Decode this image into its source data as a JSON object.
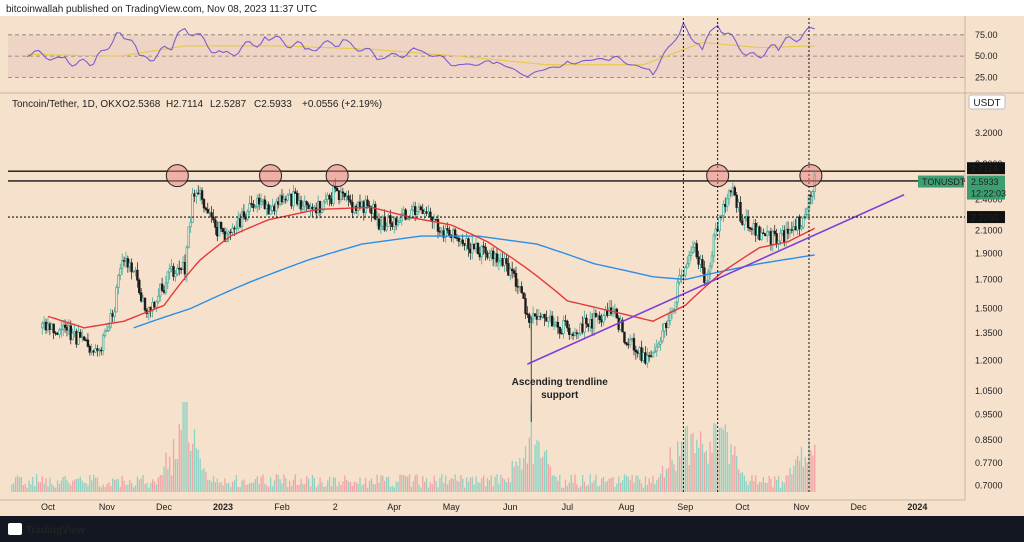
{
  "header": {
    "publisher": "bitcoinwallah published on TradingView.com, Nov 08, 2023 11:37 UTC"
  },
  "footer": {
    "brand": "TradingView"
  },
  "symbol_bar": {
    "pair": "Toncoin/Tether, 1D, OKX",
    "open": "O2.5368",
    "high": "H2.7114",
    "low": "L2.5287",
    "close": "C2.5933",
    "change": "+0.0556 (+2.19%)"
  },
  "currency_badge": "USDT",
  "annotation": {
    "line1": "Ascending trendline",
    "line2": "support"
  },
  "price_tags": [
    {
      "label": "2.7114",
      "price": 2.7114,
      "style": "dark"
    },
    {
      "label": "2.6000",
      "price": 2.6,
      "style": "dark"
    },
    {
      "label": "2.2250",
      "price": 2.225,
      "style": "dark"
    }
  ],
  "ticker_tag": {
    "label": "TONUSDT",
    "price": 2.5933,
    "value": "2.5933",
    "countdown": "12:22:03"
  },
  "colors": {
    "background": "#f6e2cc",
    "up": "#26a69a",
    "down": "#1a1a1a",
    "ema50": "#e5383b",
    "ema200": "#2b8ee6",
    "trendline": "#7e3fd8",
    "rsi": "#7b5ccf",
    "rsi_ma": "#e8c84a",
    "highlight_circle": "#e88080",
    "tag_dark": "#111111",
    "tag_green": "#3d9e72",
    "volume_up": "#8fd1c2",
    "volume_down": "#f1a3a3"
  },
  "chart_data": [
    {
      "type": "candlestick",
      "title": "Toncoin/Tether, 1D, OKX",
      "y_axis": {
        "ticks": [
          3.2,
          2.8,
          2.4,
          2.1,
          1.9,
          1.7,
          1.5,
          1.35,
          1.2,
          1.05,
          0.95,
          0.85,
          0.77,
          0.7
        ],
        "range": [
          0.68,
          3.5
        ],
        "scale": "log"
      },
      "x_axis": {
        "ticks": [
          "Oct",
          "Nov",
          "Dec",
          "2023",
          "Feb",
          "2",
          "Apr",
          "May",
          "Jun",
          "Jul",
          "Aug",
          "Sep",
          "Oct",
          "Nov",
          "Dec",
          "2024"
        ]
      },
      "close_path": {
        "x": [
          "2022-09-28",
          "2022-10-10",
          "2022-10-20",
          "2022-10-28",
          "2022-11-05",
          "2022-11-10",
          "2022-11-16",
          "2022-11-22",
          "2022-11-28",
          "2022-12-05",
          "2022-12-12",
          "2022-12-16",
          "2022-12-20",
          "2022-12-27",
          "2023-01-03",
          "2023-01-10",
          "2023-01-18",
          "2023-01-25",
          "2023-02-02",
          "2023-02-10",
          "2023-02-20",
          "2023-03-01",
          "2023-03-10",
          "2023-03-20",
          "2023-03-25",
          "2023-04-01",
          "2023-04-10",
          "2023-04-20",
          "2023-05-01",
          "2023-05-10",
          "2023-05-20",
          "2023-05-30",
          "2023-06-05",
          "2023-06-10",
          "2023-06-15",
          "2023-06-25",
          "2023-07-05",
          "2023-07-15",
          "2023-07-25",
          "2023-08-01",
          "2023-08-10",
          "2023-08-17",
          "2023-08-25",
          "2023-09-01",
          "2023-09-05",
          "2023-09-12",
          "2023-09-20",
          "2023-09-25",
          "2023-10-01",
          "2023-10-10",
          "2023-10-18",
          "2023-10-25",
          "2023-11-01",
          "2023-11-05",
          "2023-11-08"
        ],
        "y": [
          1.38,
          1.36,
          1.3,
          1.25,
          1.52,
          1.9,
          1.72,
          1.45,
          1.6,
          1.75,
          1.8,
          2.4,
          2.45,
          2.15,
          2.05,
          2.2,
          2.4,
          2.3,
          2.45,
          2.38,
          2.3,
          2.48,
          2.35,
          2.3,
          2.15,
          2.2,
          2.3,
          2.2,
          2.05,
          1.95,
          1.9,
          1.8,
          1.65,
          1.45,
          1.42,
          1.4,
          1.38,
          1.42,
          1.48,
          1.32,
          1.22,
          1.25,
          1.5,
          1.82,
          1.97,
          1.68,
          2.3,
          2.5,
          2.2,
          2.05,
          2.02,
          2.05,
          2.2,
          2.38,
          2.59
        ]
      },
      "series": [
        {
          "name": "EMA 50",
          "x": [
            "2022-10-01",
            "2022-10-20",
            "2022-11-10",
            "2022-12-01",
            "2022-12-20",
            "2023-01-05",
            "2023-01-25",
            "2023-02-20",
            "2023-03-20",
            "2023-04-10",
            "2023-05-01",
            "2023-05-20",
            "2023-06-10",
            "2023-07-01",
            "2023-07-25",
            "2023-08-15",
            "2023-09-01",
            "2023-09-20",
            "2023-10-10",
            "2023-10-25",
            "2023-11-08"
          ],
          "values": [
            1.45,
            1.38,
            1.42,
            1.52,
            1.85,
            2.05,
            2.2,
            2.3,
            2.32,
            2.22,
            2.15,
            2.0,
            1.78,
            1.55,
            1.48,
            1.42,
            1.52,
            1.75,
            1.95,
            2.0,
            2.12
          ]
        },
        {
          "name": "EMA 200",
          "x": [
            "2022-11-15",
            "2022-12-15",
            "2023-01-15",
            "2023-02-15",
            "2023-03-15",
            "2023-04-15",
            "2023-05-15",
            "2023-06-15",
            "2023-07-15",
            "2023-08-15",
            "2023-09-01",
            "2023-09-20",
            "2023-10-10",
            "2023-11-08"
          ],
          "values": [
            1.38,
            1.5,
            1.68,
            1.85,
            1.98,
            2.05,
            2.05,
            1.98,
            1.82,
            1.72,
            1.7,
            1.76,
            1.82,
            1.89
          ]
        },
        {
          "name": "Ascending trendline",
          "x": [
            "2023-06-10",
            "2023-09-10",
            "2023-12-25"
          ],
          "values": [
            1.18,
            1.65,
            2.45
          ]
        }
      ],
      "horizontal_levels": [
        2.7114,
        2.6,
        2.225
      ],
      "vertical_markers": [
        "2023-08-31",
        "2023-09-18",
        "2023-11-05"
      ],
      "resistance_touches": [
        "2022-12-08",
        "2023-01-26",
        "2023-03-02",
        "2023-09-18",
        "2023-11-06"
      ]
    },
    {
      "type": "line",
      "title": "RSI",
      "y_axis": {
        "ticks": [
          75,
          50,
          25
        ],
        "range": [
          15,
          90
        ]
      },
      "series": [
        {
          "name": "RSI",
          "x": [
            "2022-09-20",
            "2022-10-10",
            "2022-10-25",
            "2022-11-08",
            "2022-11-20",
            "2022-12-05",
            "2022-12-12",
            "2023-01-01",
            "2023-01-25",
            "2023-02-15",
            "2023-03-05",
            "2023-03-25",
            "2023-04-15",
            "2023-05-05",
            "2023-05-25",
            "2023-06-10",
            "2023-07-01",
            "2023-07-25",
            "2023-08-15",
            "2023-08-31",
            "2023-09-10",
            "2023-09-18",
            "2023-10-05",
            "2023-10-20",
            "2023-11-08"
          ],
          "values": [
            55,
            45,
            40,
            82,
            45,
            60,
            84,
            50,
            72,
            58,
            68,
            48,
            56,
            40,
            42,
            28,
            42,
            48,
            32,
            84,
            60,
            88,
            48,
            62,
            82
          ]
        },
        {
          "name": "RSI MA",
          "x": [
            "2022-09-20",
            "2022-11-08",
            "2022-12-12",
            "2023-02-01",
            "2023-03-20",
            "2023-05-05",
            "2023-06-20",
            "2023-08-10",
            "2023-09-10",
            "2023-10-10",
            "2023-11-08"
          ],
          "values": [
            52,
            50,
            62,
            62,
            58,
            50,
            40,
            40,
            66,
            60,
            62
          ]
        }
      ]
    },
    {
      "type": "bar",
      "title": "Volume",
      "x": [
        "2022-12-12",
        "2023-06-12",
        "2023-08-31",
        "2023-09-18",
        "2023-11-05"
      ],
      "values_relative": [
        0.7,
        0.55,
        0.6,
        0.75,
        0.5
      ]
    }
  ]
}
